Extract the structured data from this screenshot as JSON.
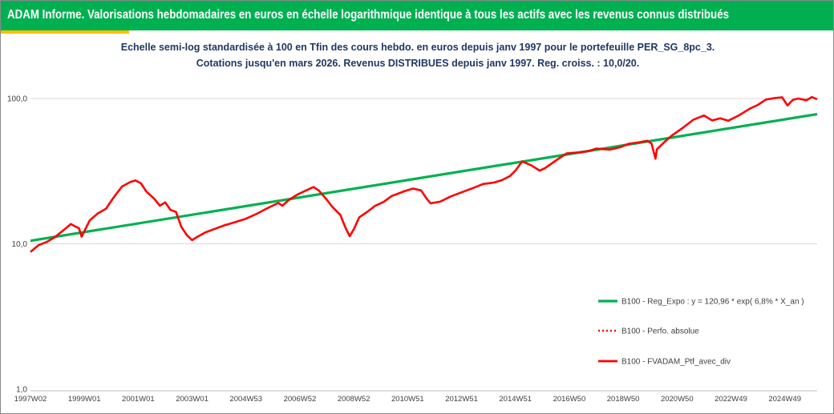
{
  "header": {
    "title": "ADAM Informe. Valorisations hebdomadaires en euros en échelle logarithmique identique à tous les actifs avec les revenus connus distribués",
    "banner_color": "#00b050",
    "accent_color": "#ffc000"
  },
  "chart_data": {
    "type": "line",
    "title": "Echelle semi-log standardisée  à 100 en Tfin des cours hebdo.  en euros depuis janv 1997 pour le portefeuille PER_SG_8pc_3.",
    "subtitle": "Cotations  jusqu'en mars 2026. Revenus DISTRIBUES depuis janv 1997. Reg. croiss. : 10,0/20.",
    "y_scale": "log",
    "ylim": [
      1,
      100
    ],
    "y_tick_labels": [
      "100,0",
      "10,0",
      "1,0"
    ],
    "y_ticks": [
      100,
      10,
      1
    ],
    "x_tick_labels": [
      "1997W02",
      "1999W01",
      "2001W01",
      "2003W01",
      "2004W53",
      "2006W52",
      "2008W52",
      "2010W51",
      "2012W51",
      "2014W51",
      "2016W50",
      "2018W50",
      "2020W50",
      "2022W49",
      "2024W49"
    ],
    "x_ticks": [
      1997.0,
      1999.0,
      2001.0,
      2003.0,
      2005.0,
      2007.0,
      2009.0,
      2011.0,
      2013.0,
      2015.0,
      2017.0,
      2019.0,
      2021.0,
      2023.0,
      2025.0
    ],
    "xlim": [
      1997.0,
      2026.2
    ],
    "grid": "horizontal",
    "legend_position": "bottom-right",
    "series": [
      {
        "name": "B100 - Reg_Expo : y = 120,96 * exp( 6,8% *  X_an )",
        "color": "#00b050",
        "style": "solid",
        "x": [
          1997.0,
          2026.2
        ],
        "y": [
          10.5,
          78
        ]
      },
      {
        "name": "B100 - Perfo. absolue",
        "color": "#ff0000",
        "style": "dotted",
        "x": [],
        "y": []
      },
      {
        "name": "B100 - FVADAM_Ptf_avec_div",
        "color": "#ff0000",
        "style": "solid",
        "x": [
          1997.0,
          1997.3,
          1997.6,
          1997.9,
          1998.2,
          1998.5,
          1998.65,
          1998.8,
          1998.9,
          1999.2,
          1999.5,
          1999.8,
          2000.1,
          2000.4,
          2000.7,
          2000.9,
          2001.1,
          2001.3,
          2001.6,
          2001.8,
          2002.0,
          2002.2,
          2002.4,
          2002.6,
          2002.8,
          2003.0,
          2003.1,
          2003.2,
          2003.5,
          2003.8,
          2004.2,
          2004.6,
          2005.0,
          2005.4,
          2005.8,
          2006.2,
          2006.35,
          2006.6,
          2006.9,
          2007.3,
          2007.5,
          2007.7,
          2008.0,
          2008.2,
          2008.5,
          2008.7,
          2008.85,
          2009.0,
          2009.2,
          2009.5,
          2009.8,
          2010.1,
          2010.4,
          2010.6,
          2010.9,
          2011.2,
          2011.5,
          2011.7,
          2011.85,
          2012.2,
          2012.6,
          2013.0,
          2013.4,
          2013.8,
          2014.2,
          2014.5,
          2014.8,
          2015.0,
          2015.25,
          2015.6,
          2015.9,
          2016.1,
          2016.5,
          2016.9,
          2017.3,
          2017.7,
          2018.0,
          2018.5,
          2018.9,
          2019.2,
          2019.6,
          2019.9,
          2020.05,
          2020.2,
          2020.25,
          2020.5,
          2020.8,
          2021.2,
          2021.6,
          2022.0,
          2022.3,
          2022.6,
          2022.9,
          2023.3,
          2023.7,
          2024.0,
          2024.3,
          2024.6,
          2024.9,
          2025.1,
          2025.3,
          2025.5,
          2025.8,
          2026.0,
          2026.2
        ],
        "y": [
          8.8,
          9.8,
          10.3,
          11.1,
          12.3,
          13.7,
          13.2,
          12.8,
          11.2,
          14.5,
          16.2,
          17.4,
          21.0,
          24.8,
          26.6,
          27.3,
          26.1,
          22.9,
          20.4,
          18.3,
          19.3,
          17.1,
          16.6,
          13.1,
          11.5,
          10.6,
          10.9,
          11.2,
          12.0,
          12.6,
          13.4,
          14.1,
          14.9,
          16.1,
          17.6,
          19.1,
          18.3,
          20.1,
          21.8,
          23.6,
          24.6,
          23.3,
          20.1,
          18.0,
          15.8,
          12.8,
          11.3,
          12.6,
          15.2,
          16.6,
          18.3,
          19.4,
          21.3,
          22.0,
          23.1,
          24.0,
          23.3,
          20.5,
          19.0,
          19.5,
          21.2,
          22.6,
          24.1,
          25.8,
          26.4,
          27.4,
          29.3,
          31.9,
          36.9,
          34.6,
          31.9,
          33.2,
          37.4,
          41.9,
          42.5,
          43.4,
          45.2,
          44.5,
          46.3,
          48.8,
          50.0,
          51.2,
          49.0,
          38.5,
          44.6,
          49.5,
          55.5,
          62.5,
          71.4,
          76.4,
          70.6,
          73.0,
          70.3,
          76.6,
          85.1,
          90.4,
          98.4,
          100.5,
          101.9,
          89.5,
          97.9,
          100.0,
          97.3,
          102.3,
          98.9
        ]
      }
    ]
  }
}
